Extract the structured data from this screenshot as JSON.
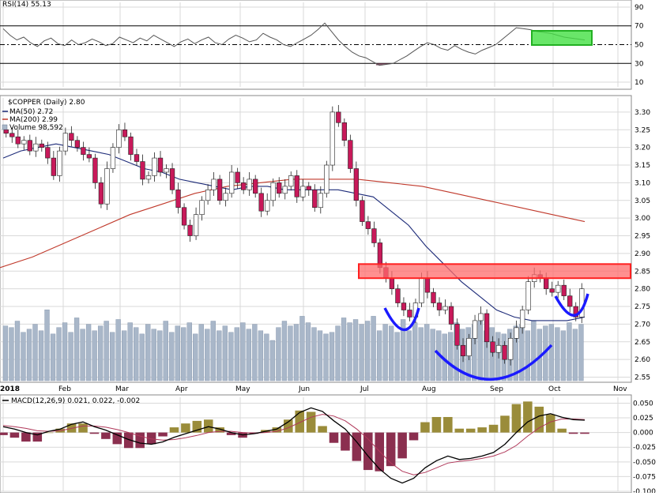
{
  "colors": {
    "background": "#ffffff",
    "grid": "#d9d9d9",
    "up_candle": "#ffffff",
    "down_candle": "#c8195a",
    "volume": "#a9b7c9",
    "ma50": "#1c2a78",
    "ma200": "#c0392b",
    "rsi_line": "#555555",
    "rsi_oversold_fill": "#7b3a55",
    "macd_line": "#000000",
    "signal_line": "#b0385a",
    "hist_pos": "#9a8c3a",
    "hist_neg": "#8b2f4f",
    "resistance_box": "#ff6b6b",
    "rsi_highlight": "#44e044",
    "cup_arc": "#1a1aff"
  },
  "chart_data": [
    {
      "type": "line",
      "panel": "rsi",
      "title": "RSI(14) 55.13",
      "yticks": [
        10,
        30,
        50,
        70,
        90
      ],
      "ylim": [
        5,
        95
      ],
      "levels": [
        30,
        50,
        70
      ],
      "series": [
        {
          "name": "RSI(14)",
          "values": [
            67,
            60,
            55,
            58,
            52,
            48,
            54,
            57,
            51,
            49,
            55,
            50,
            52,
            56,
            53,
            49,
            51,
            58,
            55,
            52,
            57,
            54,
            60,
            56,
            52,
            48,
            53,
            56,
            51,
            55,
            58,
            52,
            50,
            56,
            60,
            57,
            53,
            55,
            62,
            58,
            55,
            50,
            48,
            52,
            56,
            60,
            66,
            73,
            64,
            55,
            48,
            42,
            38,
            36,
            32,
            28,
            29,
            30,
            34,
            38,
            43,
            48,
            52,
            50,
            46,
            44,
            49,
            45,
            42,
            40,
            44,
            47,
            50,
            56,
            62,
            68,
            67,
            66,
            64,
            63,
            62,
            60,
            58,
            57,
            56,
            55
          ]
        }
      ],
      "annotations": [
        "green highlight box near 70 line (Sep–Oct)"
      ]
    },
    {
      "type": "candlestick",
      "panel": "price",
      "title": "$COPPER (Daily) 2.80",
      "legend": [
        "MA(50) 2.72",
        "MA(200) 2.99",
        "Volume 98,592"
      ],
      "ylim": [
        2.54,
        3.34
      ],
      "yticks": [
        2.55,
        2.6,
        2.65,
        2.7,
        2.75,
        2.8,
        2.85,
        2.9,
        2.95,
        3.0,
        3.05,
        3.1,
        3.15,
        3.2,
        3.25,
        3.3
      ],
      "months": [
        "2018",
        "Feb",
        "Mar",
        "Apr",
        "May",
        "Jun",
        "Jul",
        "Aug",
        "Sep",
        "Oct",
        "Nov"
      ],
      "close": [
        3.24,
        3.23,
        3.21,
        3.22,
        3.19,
        3.21,
        3.2,
        3.17,
        3.12,
        3.19,
        3.24,
        3.22,
        3.2,
        3.18,
        3.17,
        3.1,
        3.04,
        3.14,
        3.2,
        3.25,
        3.23,
        3.18,
        3.16,
        3.11,
        3.12,
        3.17,
        3.13,
        3.14,
        3.08,
        3.03,
        2.98,
        2.95,
        3.01,
        3.05,
        3.08,
        3.11,
        3.05,
        3.07,
        3.13,
        3.1,
        3.08,
        3.11,
        3.07,
        3.02,
        3.05,
        3.1,
        3.07,
        3.09,
        3.12,
        3.06,
        3.09,
        3.08,
        3.03,
        3.07,
        3.15,
        3.3,
        3.27,
        3.22,
        3.14,
        3.05,
        2.99,
        2.97,
        2.93,
        2.86,
        2.83,
        2.8,
        2.76,
        2.74,
        2.72,
        2.76,
        2.83,
        2.79,
        2.76,
        2.74,
        2.75,
        2.7,
        2.64,
        2.61,
        2.66,
        2.71,
        2.73,
        2.65,
        2.62,
        2.64,
        2.6,
        2.66,
        2.69,
        2.74,
        2.82,
        2.84,
        2.83,
        2.8,
        2.79,
        2.81,
        2.78,
        2.75,
        2.72,
        2.8
      ],
      "ma50": [
        3.17,
        3.19,
        3.2,
        3.21,
        3.2,
        3.19,
        3.18,
        3.16,
        3.14,
        3.13,
        3.11,
        3.1,
        3.09,
        3.08,
        3.09,
        3.09,
        3.08,
        3.08,
        3.08,
        3.08,
        3.07,
        3.06,
        3.02,
        2.98,
        2.92,
        2.87,
        2.82,
        2.78,
        2.74,
        2.72,
        2.71,
        2.71,
        2.71,
        2.72
      ],
      "ma200": [
        2.86,
        2.89,
        2.93,
        2.97,
        3.01,
        3.04,
        3.07,
        3.09,
        3.1,
        3.11,
        3.11,
        3.11,
        3.1,
        3.09,
        3.07,
        3.05,
        3.03,
        3.01,
        2.99
      ],
      "volume": [
        68,
        66,
        74,
        60,
        64,
        70,
        62,
        88,
        58,
        66,
        72,
        60,
        78,
        64,
        70,
        62,
        68,
        74,
        60,
        76,
        62,
        72,
        66,
        58,
        70,
        64,
        62,
        74,
        60,
        68,
        66,
        72,
        58,
        70,
        64,
        74,
        62,
        68,
        60,
        66,
        72,
        64,
        70,
        62,
        58,
        50,
        66,
        74,
        68,
        70,
        80,
        72,
        66,
        62,
        58,
        60,
        68,
        78,
        72,
        76,
        70,
        74,
        80,
        62,
        70,
        68,
        60,
        76,
        62,
        72,
        66,
        70,
        64,
        62,
        58,
        60,
        72,
        64,
        66,
        70,
        74,
        62,
        66,
        60,
        58,
        64,
        68,
        70,
        62,
        74,
        64,
        68,
        70,
        66,
        62,
        72,
        64,
        70
      ],
      "annotations": [
        {
          "label": "resistance zone",
          "range": [
            2.83,
            2.87
          ]
        },
        {
          "label": "cup-and-handle pattern arcs"
        }
      ]
    },
    {
      "type": "line",
      "panel": "macd",
      "title": "MACD(12,26,9) 0.021, 0.022, -0.002",
      "ylim": [
        -0.1,
        0.06
      ],
      "yticks": [
        0.05,
        0.025,
        0.0,
        -0.025,
        -0.05,
        -0.075,
        -0.1
      ],
      "series": [
        {
          "name": "MACD",
          "values": [
            0.01,
            0.006,
            0.0,
            -0.004,
            0.002,
            0.006,
            0.014,
            0.018,
            0.01,
            0.004,
            -0.004,
            -0.012,
            -0.018,
            -0.02,
            -0.016,
            -0.008,
            -0.002,
            0.004,
            0.01,
            0.006,
            0.0,
            -0.004,
            -0.002,
            0.002,
            0.006,
            0.018,
            0.034,
            0.042,
            0.036,
            0.02,
            0.006,
            -0.016,
            -0.04,
            -0.062,
            -0.078,
            -0.086,
            -0.078,
            -0.06,
            -0.048,
            -0.04,
            -0.046,
            -0.044,
            -0.04,
            -0.034,
            -0.02,
            0.0,
            0.018,
            0.028,
            0.032,
            0.026,
            0.022,
            0.021
          ]
        },
        {
          "name": "Signal",
          "values": [
            0.012,
            0.01,
            0.007,
            0.003,
            0.002,
            0.003,
            0.007,
            0.011,
            0.011,
            0.009,
            0.005,
            0.0,
            -0.006,
            -0.011,
            -0.013,
            -0.012,
            -0.009,
            -0.005,
            0.0,
            0.002,
            0.002,
            0.0,
            -0.001,
            0.0,
            0.002,
            0.008,
            0.017,
            0.026,
            0.031,
            0.028,
            0.02,
            0.006,
            -0.011,
            -0.032,
            -0.052,
            -0.066,
            -0.072,
            -0.068,
            -0.06,
            -0.052,
            -0.049,
            -0.047,
            -0.044,
            -0.04,
            -0.033,
            -0.022,
            -0.006,
            0.008,
            0.018,
            0.023,
            0.023,
            0.022
          ]
        }
      ]
    }
  ],
  "labels": {
    "rsi_title": "RSI(14) 55.13",
    "price_title": "$COPPER (Daily) 2.80",
    "ma50_legend": "MA(50) 2.72",
    "ma200_legend": "MA(200) 2.99",
    "volume_legend": "Volume 98,592",
    "macd_title": "MACD(12,26,9) 0.021, 0.022, -0.002"
  }
}
